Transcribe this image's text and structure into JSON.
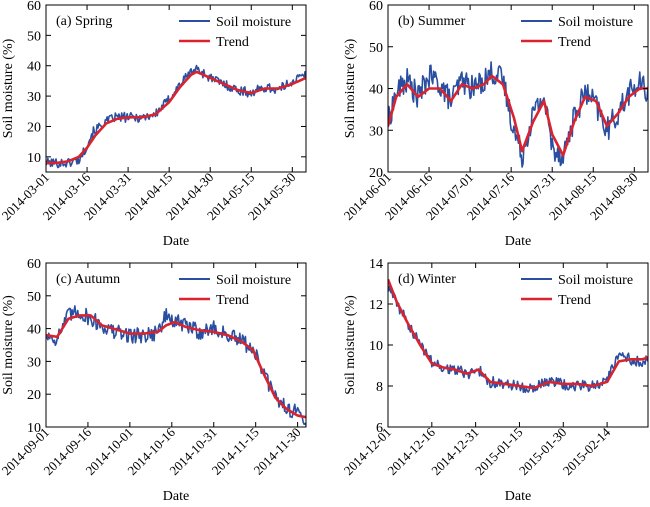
{
  "chart_data": [
    {
      "type": "line",
      "title": "(a) Spring",
      "xlabel": "Date",
      "ylabel": "Soil moisture (%)",
      "ylim": [
        5,
        60
      ],
      "yticks": [
        10,
        20,
        30,
        40,
        50,
        60
      ],
      "xlim": [
        "2014-03-01",
        "2014-06-04"
      ],
      "xticks": [
        "2014-03-01",
        "2014-03-16",
        "2014-03-31",
        "2014-04-15",
        "2014-04-30",
        "2014-05-15",
        "2014-05-30"
      ],
      "legend_position": "top-right",
      "colors": {
        "soil_moisture": "#2b4fa0",
        "trend": "#d9232e"
      },
      "series": [
        {
          "name": "Soil moisture",
          "noise": 1.6,
          "x": [
            "2014-03-01",
            "2014-03-05",
            "2014-03-09",
            "2014-03-13",
            "2014-03-15",
            "2014-03-18",
            "2014-03-22",
            "2014-03-26",
            "2014-03-31",
            "2014-04-05",
            "2014-04-10",
            "2014-04-15",
            "2014-04-19",
            "2014-04-23",
            "2014-04-25",
            "2014-04-30",
            "2014-05-05",
            "2014-05-10",
            "2014-05-15",
            "2014-05-20",
            "2014-05-25",
            "2014-05-30",
            "2014-06-04"
          ],
          "y": [
            8,
            8,
            8,
            9,
            12,
            18,
            21,
            23,
            23,
            23,
            24,
            29,
            34,
            38,
            39,
            36,
            34,
            32,
            31,
            33,
            32,
            35,
            37
          ]
        },
        {
          "name": "Trend",
          "noise": 0,
          "x": [
            "2014-03-01",
            "2014-03-05",
            "2014-03-09",
            "2014-03-13",
            "2014-03-16",
            "2014-03-19",
            "2014-03-23",
            "2014-03-27",
            "2014-03-31",
            "2014-04-05",
            "2014-04-10",
            "2014-04-15",
            "2014-04-19",
            "2014-04-23",
            "2014-04-25",
            "2014-04-30",
            "2014-05-05",
            "2014-05-10",
            "2014-05-15",
            "2014-05-20",
            "2014-05-25",
            "2014-05-30",
            "2014-06-04"
          ],
          "y": [
            8,
            8,
            8.5,
            10,
            13,
            17,
            21,
            22.5,
            23,
            23,
            24,
            28,
            33,
            37,
            38,
            36,
            34,
            32,
            31,
            32.5,
            32.5,
            34,
            36
          ]
        }
      ]
    },
    {
      "type": "line",
      "title": "(b) Summer",
      "xlabel": "Date",
      "ylabel": "Soil moisture (%)",
      "ylim": [
        20,
        60
      ],
      "yticks": [
        20,
        30,
        40,
        50,
        60
      ],
      "xlim": [
        "2014-06-01",
        "2014-09-04"
      ],
      "xticks": [
        "2014-06-01",
        "2014-06-16",
        "2014-07-01",
        "2014-07-16",
        "2014-07-31",
        "2014-08-15",
        "2014-08-30"
      ],
      "legend_position": "top-right",
      "colors": {
        "soil_moisture": "#2b4fa0",
        "trend": "#d9232e"
      },
      "series": [
        {
          "name": "Soil moisture",
          "noise": 3,
          "x": [
            "2014-06-01",
            "2014-06-04",
            "2014-06-08",
            "2014-06-12",
            "2014-06-16",
            "2014-06-20",
            "2014-06-24",
            "2014-06-28",
            "2014-07-02",
            "2014-07-06",
            "2014-07-09",
            "2014-07-13",
            "2014-07-17",
            "2014-07-20",
            "2014-07-24",
            "2014-07-28",
            "2014-07-31",
            "2014-08-04",
            "2014-08-08",
            "2014-08-12",
            "2014-08-16",
            "2014-08-20",
            "2014-08-24",
            "2014-08-28",
            "2014-09-01",
            "2014-09-04"
          ],
          "y": [
            32,
            39,
            42,
            38,
            43,
            41,
            37,
            42,
            40,
            42,
            44,
            42,
            30,
            24,
            34,
            38,
            26,
            24,
            33,
            39,
            36,
            30,
            34,
            39,
            41,
            39
          ]
        },
        {
          "name": "Trend",
          "noise": 0,
          "x": [
            "2014-06-01",
            "2014-06-04",
            "2014-06-08",
            "2014-06-12",
            "2014-06-16",
            "2014-06-20",
            "2014-06-24",
            "2014-06-28",
            "2014-07-02",
            "2014-07-06",
            "2014-07-09",
            "2014-07-13",
            "2014-07-17",
            "2014-07-20",
            "2014-07-24",
            "2014-07-28",
            "2014-07-31",
            "2014-08-04",
            "2014-08-08",
            "2014-08-12",
            "2014-08-16",
            "2014-08-20",
            "2014-08-24",
            "2014-08-28",
            "2014-09-01",
            "2014-09-04"
          ],
          "y": [
            31,
            38,
            41,
            38,
            40,
            40,
            37,
            41,
            40,
            41,
            43,
            41,
            33,
            25,
            32,
            37,
            29,
            24,
            32,
            38,
            37,
            31,
            34,
            38,
            40,
            40
          ]
        }
      ]
    },
    {
      "type": "line",
      "title": "(c) Autumn",
      "xlabel": "Date",
      "ylabel": "Soil moisture (%)",
      "ylim": [
        10,
        60
      ],
      "yticks": [
        10,
        20,
        30,
        40,
        50,
        60
      ],
      "xlim": [
        "2014-09-01",
        "2014-12-03"
      ],
      "xticks": [
        "2014-09-01",
        "2014-09-16",
        "2014-10-01",
        "2014-10-16",
        "2014-10-31",
        "2014-11-15",
        "2014-11-30"
      ],
      "legend_position": "top-right",
      "colors": {
        "soil_moisture": "#2b4fa0",
        "trend": "#d9232e"
      },
      "series": [
        {
          "name": "Soil moisture",
          "noise": 2.5,
          "x": [
            "2014-09-01",
            "2014-09-05",
            "2014-09-09",
            "2014-09-13",
            "2014-09-17",
            "2014-09-21",
            "2014-09-25",
            "2014-10-01",
            "2014-10-06",
            "2014-10-11",
            "2014-10-14",
            "2014-10-17",
            "2014-10-21",
            "2014-10-26",
            "2014-10-31",
            "2014-11-05",
            "2014-11-10",
            "2014-11-14",
            "2014-11-18",
            "2014-11-22",
            "2014-11-26",
            "2014-11-30",
            "2014-12-03"
          ],
          "y": [
            38,
            37,
            44,
            45,
            43,
            41,
            39,
            38,
            38,
            39,
            44,
            42,
            41,
            39,
            40,
            38,
            36,
            34,
            26,
            19,
            16,
            14,
            13
          ]
        },
        {
          "name": "Trend",
          "noise": 0,
          "x": [
            "2014-09-01",
            "2014-09-05",
            "2014-09-09",
            "2014-09-13",
            "2014-09-17",
            "2014-09-21",
            "2014-09-25",
            "2014-10-01",
            "2014-10-06",
            "2014-10-11",
            "2014-10-14",
            "2014-10-17",
            "2014-10-21",
            "2014-10-26",
            "2014-10-31",
            "2014-11-05",
            "2014-11-10",
            "2014-11-14",
            "2014-11-18",
            "2014-11-22",
            "2014-11-26",
            "2014-11-30",
            "2014-12-03"
          ],
          "y": [
            38,
            37.5,
            43,
            44,
            44,
            41,
            40,
            38.5,
            38.5,
            39,
            41,
            42,
            40.5,
            39.5,
            39,
            38,
            36,
            33.5,
            26,
            19,
            15.5,
            13.5,
            13
          ]
        }
      ]
    },
    {
      "type": "line",
      "title": "(d) Winter",
      "xlabel": "Date",
      "ylabel": "Soil moisture (%)",
      "ylim": [
        6,
        14
      ],
      "yticks": [
        6,
        8,
        10,
        12,
        14
      ],
      "xlim": [
        "2014-12-01",
        "2015-02-28"
      ],
      "xticks": [
        "2014-12-01",
        "2014-12-16",
        "2014-12-31",
        "2015-01-15",
        "2015-01-30",
        "2015-02-14"
      ],
      "legend_position": "top-right",
      "colors": {
        "soil_moisture": "#2b4fa0",
        "trend": "#d9232e"
      },
      "series": [
        {
          "name": "Soil moisture",
          "noise": 0.28,
          "x": [
            "2014-12-01",
            "2014-12-04",
            "2014-12-08",
            "2014-12-12",
            "2014-12-16",
            "2014-12-20",
            "2014-12-24",
            "2014-12-28",
            "2015-01-01",
            "2015-01-05",
            "2015-01-10",
            "2015-01-15",
            "2015-01-20",
            "2015-01-25",
            "2015-01-30",
            "2015-02-04",
            "2015-02-09",
            "2015-02-14",
            "2015-02-18",
            "2015-02-22",
            "2015-02-26",
            "2015-02-28"
          ],
          "y": [
            13,
            12,
            11,
            10,
            9.2,
            8.9,
            8.8,
            8.6,
            8.8,
            8.2,
            8.1,
            8.0,
            7.9,
            8.2,
            8.1,
            8.0,
            8.0,
            8.3,
            9.5,
            9.3,
            9.2,
            9.3
          ]
        },
        {
          "name": "Trend",
          "noise": 0,
          "x": [
            "2014-12-01",
            "2014-12-04",
            "2014-12-08",
            "2014-12-12",
            "2014-12-16",
            "2014-12-20",
            "2014-12-24",
            "2014-12-28",
            "2015-01-01",
            "2015-01-05",
            "2015-01-10",
            "2015-01-15",
            "2015-01-20",
            "2015-01-25",
            "2015-01-30",
            "2015-02-04",
            "2015-02-09",
            "2015-02-14",
            "2015-02-18",
            "2015-02-22",
            "2015-02-26",
            "2015-02-28"
          ],
          "y": [
            13.2,
            12.1,
            11,
            10,
            9.1,
            8.9,
            8.8,
            8.6,
            8.8,
            8.2,
            8.1,
            8.0,
            7.9,
            8.2,
            8.1,
            8.1,
            8.0,
            8.2,
            9.2,
            9.3,
            9.3,
            9.4
          ]
        }
      ]
    }
  ]
}
